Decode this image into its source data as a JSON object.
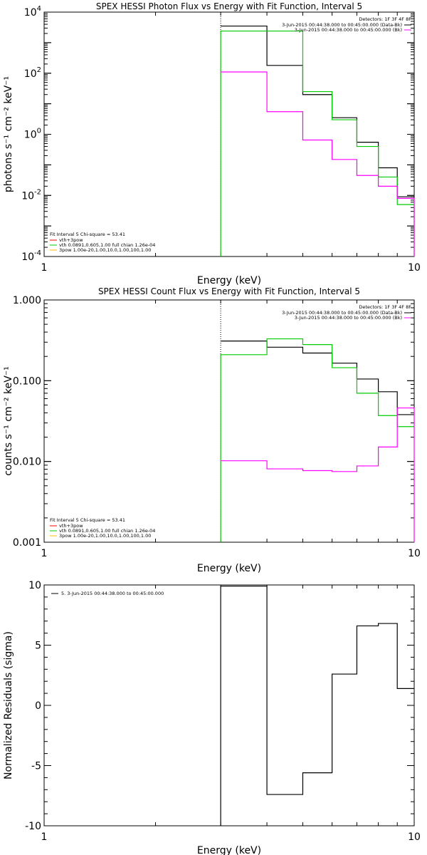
{
  "chart_data": [
    {
      "type": "line",
      "step": true,
      "title": "SPEX HESSI Photon Flux vs Energy with Fit Function, Interval 5",
      "xlabel": "Energy (keV)",
      "ylabel": "photons s⁻¹ cm⁻² keV⁻¹",
      "x_scale": "log",
      "y_scale": "log",
      "xlim": [
        1,
        10
      ],
      "ylim": [
        0.0001,
        10000
      ],
      "x_ticks": [
        {
          "value": 1,
          "label": "1"
        },
        {
          "value": 10,
          "label": "10"
        }
      ],
      "y_ticks": [
        {
          "value": 0.0001,
          "base": "10",
          "exp": "-4"
        },
        {
          "value": 0.01,
          "base": "10",
          "exp": "-2"
        },
        {
          "value": 1,
          "base": "10",
          "exp": "0"
        },
        {
          "value": 100,
          "base": "10",
          "exp": "2"
        },
        {
          "value": 10000,
          "base": "10",
          "exp": "4"
        }
      ],
      "bin_edges": [
        3,
        4,
        5,
        6,
        7,
        8,
        9,
        10
      ],
      "vline": {
        "x": 3,
        "color": "#000000",
        "style": "dotted"
      },
      "series": [
        {
          "color": "#000000",
          "values": [
            3500,
            180,
            20,
            3.5,
            0.55,
            0.08,
            0.009
          ]
        },
        {
          "color": "#00cc00",
          "values": [
            2400,
            2400,
            25,
            3.0,
            0.4,
            0.04,
            0.005
          ],
          "drop_left": true,
          "drop_right": true
        },
        {
          "color": "#ff00ff",
          "values": [
            110,
            5.5,
            0.65,
            0.15,
            0.045,
            0.02,
            0.008
          ],
          "drop_right": true
        }
      ],
      "legend_top": {
        "header": "Detectors: 1F 3F 4F 8F",
        "entries": [
          {
            "label": "3-Jun-2015 00:44:38.000 to 00:45:00.000 (Data-Bk)",
            "color": "#000000"
          },
          {
            "label": "3-Jun-2015 00:44:38.000 to 00:45:00.000 (Bk)",
            "color": "#ff00ff"
          }
        ]
      },
      "legend_bottom": {
        "header": "Fit Interval  5    Chi-square = 53.41",
        "entries": [
          {
            "label": "vth+3pow",
            "color": "#ff0000"
          },
          {
            "label": "vth 0.0891,0.605,1.00   full chian 1.26e-04",
            "color": "#00cc00"
          },
          {
            "label": "3pow 1.00e-20,1.00,10.0,1.00,100,1.00",
            "color": "#ffbb00"
          }
        ]
      }
    },
    {
      "type": "line",
      "step": true,
      "title": "SPEX HESSI Count Flux vs Energy with Fit Function, Interval 5",
      "xlabel": "Energy (keV)",
      "ylabel": "counts s⁻¹ cm⁻² keV⁻¹",
      "x_scale": "log",
      "y_scale": "log",
      "xlim": [
        1,
        10
      ],
      "ylim": [
        0.001,
        1.0
      ],
      "x_ticks": [
        {
          "value": 1,
          "label": "1"
        },
        {
          "value": 10,
          "label": "10"
        }
      ],
      "y_ticks": [
        {
          "value": 0.001,
          "label": "0.001"
        },
        {
          "value": 0.01,
          "label": "0.010"
        },
        {
          "value": 0.1,
          "label": "0.100"
        },
        {
          "value": 1.0,
          "label": "1.000"
        }
      ],
      "bin_edges": [
        3,
        4,
        5,
        6,
        7,
        8,
        9,
        10
      ],
      "vline": {
        "x": 3,
        "color": "#000000",
        "style": "dotted"
      },
      "series": [
        {
          "color": "#000000",
          "values": [
            0.31,
            0.26,
            0.22,
            0.165,
            0.105,
            0.073,
            0.038
          ]
        },
        {
          "color": "#00cc00",
          "values": [
            0.21,
            0.33,
            0.28,
            0.145,
            0.07,
            0.037,
            0.027
          ],
          "drop_left": true
        },
        {
          "color": "#ff00ff",
          "values": [
            0.0102,
            0.0081,
            0.0077,
            0.0075,
            0.0088,
            0.0151,
            0.046
          ],
          "drop_right": true
        }
      ],
      "legend_top": {
        "header": "Detectors: 1F 3F 4F 8F",
        "entries": [
          {
            "label": "3-Jun-2015 00:44:38.000 to 00:45:00.000 (Data-Bk)",
            "color": "#000000"
          },
          {
            "label": "3-Jun-2015 00:44:38.000 to 00:45:00.000 (Bk)",
            "color": "#ff00ff"
          }
        ]
      },
      "legend_bottom": {
        "header": "Fit Interval  5    Chi-square = 53.41",
        "entries": [
          {
            "label": "vth+3pow",
            "color": "#ff0000"
          },
          {
            "label": "vth 0.0891,0.605,1.00   full chian 1.26e-04",
            "color": "#00cc00"
          },
          {
            "label": "3pow 1.00e-20,1.00,10.0,1.00,100,1.00",
            "color": "#ffbb00"
          }
        ]
      }
    },
    {
      "type": "line",
      "step": true,
      "title": "",
      "xlabel": "Energy (keV)",
      "ylabel": "Normalized Residuals (sigma)",
      "x_scale": "log",
      "y_scale": "linear",
      "xlim": [
        1,
        10
      ],
      "ylim": [
        -10,
        10
      ],
      "x_ticks": [
        {
          "value": 1,
          "label": "1"
        },
        {
          "value": 10,
          "label": "10"
        }
      ],
      "y_ticks": [
        {
          "value": -10,
          "label": "-10"
        },
        {
          "value": -5,
          "label": "-5"
        },
        {
          "value": 0,
          "label": "0"
        },
        {
          "value": 5,
          "label": "5"
        },
        {
          "value": 10,
          "label": "10"
        }
      ],
      "bin_edges": [
        3,
        4,
        5,
        6,
        7,
        8,
        9,
        10
      ],
      "series": [
        {
          "color": "#000000",
          "values": [
            9.9,
            -7.4,
            -5.6,
            2.6,
            6.6,
            6.8,
            1.4
          ],
          "drop_left": true
        }
      ],
      "legend_top": {
        "header": "",
        "entries": [
          {
            "label": "5.  3-Jun-2015 00:44:38.000 to 00:45:00.000",
            "color": "#000000"
          }
        ]
      }
    }
  ]
}
